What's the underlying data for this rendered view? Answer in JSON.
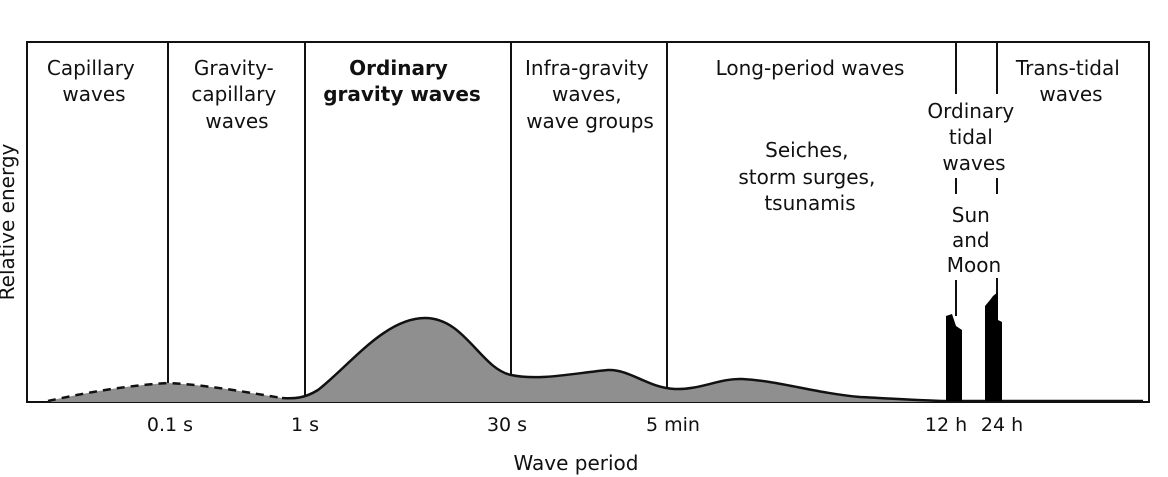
{
  "axes": {
    "y_label": "Relative energy",
    "x_label": "Wave period"
  },
  "bands": [
    {
      "lines": [
        "Capillary",
        "waves"
      ],
      "bold": false
    },
    {
      "lines": [
        "Gravity-",
        "capillary",
        "waves"
      ],
      "bold": false
    },
    {
      "lines": [
        "Ordinary",
        "gravity waves"
      ],
      "bold": true
    },
    {
      "lines": [
        "Infra-gravity",
        "waves,",
        "wave groups"
      ],
      "bold": false
    },
    {
      "lines": [
        "Long-period waves"
      ],
      "bold": false
    },
    {
      "lines": [
        "Ordinary",
        "tidal",
        "waves"
      ],
      "bold": false
    },
    {
      "lines": [
        "Trans-tidal",
        "waves"
      ],
      "bold": false
    }
  ],
  "annotations": {
    "long_period_examples": [
      "Seiches,",
      "storm surges,",
      "tsunamis"
    ],
    "tidal_forcing": [
      "Sun",
      "and",
      "Moon"
    ]
  },
  "ticks": [
    "0.1 s",
    "1 s",
    "30 s",
    "5 min",
    "12 h",
    "24 h"
  ],
  "colors": {
    "fill": "#8f8f8f",
    "line": "#111111",
    "spike": "#000000"
  }
}
